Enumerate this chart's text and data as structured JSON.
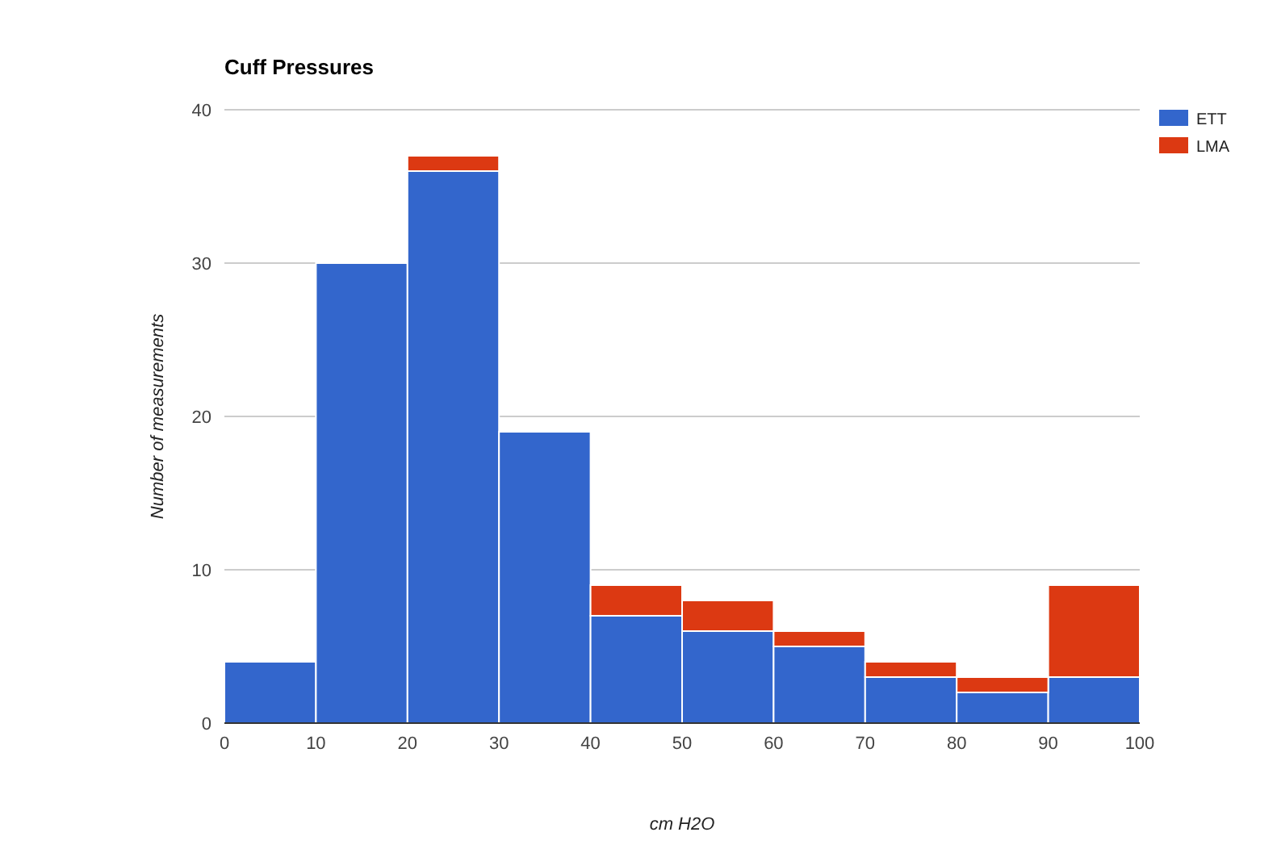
{
  "chart_data": {
    "type": "bar",
    "title": "Cuff Pressures",
    "xlabel": "cm H2O",
    "ylabel": "Number of measurements",
    "x": [
      5,
      15,
      25,
      35,
      45,
      55,
      65,
      75,
      85,
      95
    ],
    "stacked": true,
    "series": [
      {
        "name": "ETT",
        "color": "#3366cc",
        "values": [
          4,
          30,
          36,
          19,
          7,
          6,
          5,
          3,
          2,
          3
        ]
      },
      {
        "name": "LMA",
        "color": "#dc3912",
        "values": [
          0,
          0,
          1,
          0,
          2,
          2,
          1,
          1,
          1,
          6
        ]
      }
    ],
    "xlim": [
      0,
      100
    ],
    "xticks": [
      0,
      10,
      20,
      30,
      40,
      50,
      60,
      70,
      80,
      90,
      100
    ],
    "ylim": [
      0,
      40
    ],
    "yticks": [
      0,
      10,
      20,
      30,
      40
    ],
    "grid": "y",
    "legend": "top right"
  }
}
